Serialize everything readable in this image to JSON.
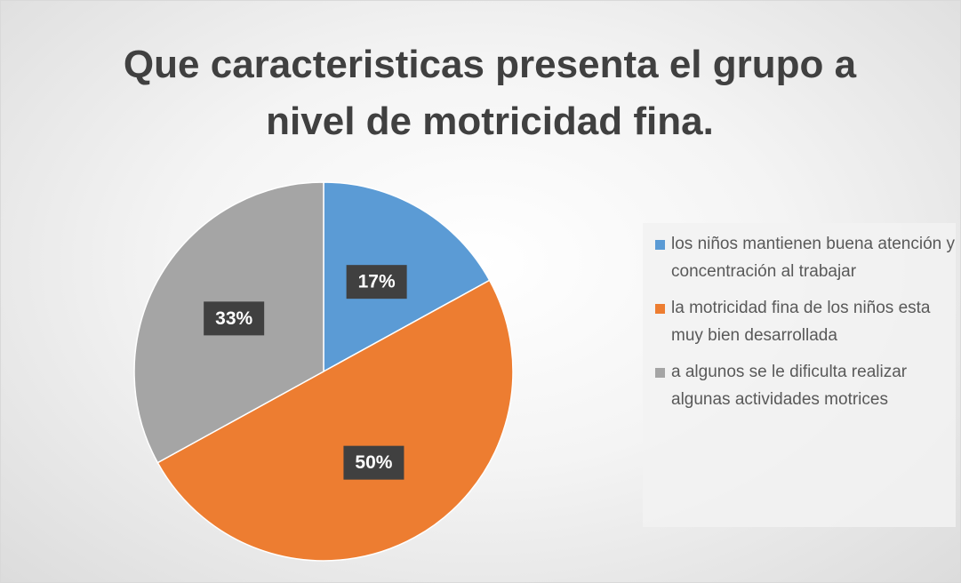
{
  "chart_data": {
    "type": "pie",
    "title": "Que caracteristicas presenta el grupo a nivel de motricidad fina.",
    "categories": [
      "los niños mantienen buena atención y concentración al trabajar",
      "la motricidad fina de los niños esta muy bien desarrollada",
      "a algunos se le dificulta realizar algunas actividades motrices"
    ],
    "values": [
      17,
      50,
      33
    ],
    "value_labels": [
      "17%",
      "50%",
      "33%"
    ],
    "colors": [
      "#5b9bd5",
      "#ed7d31",
      "#a5a5a5"
    ],
    "legend": "right"
  }
}
